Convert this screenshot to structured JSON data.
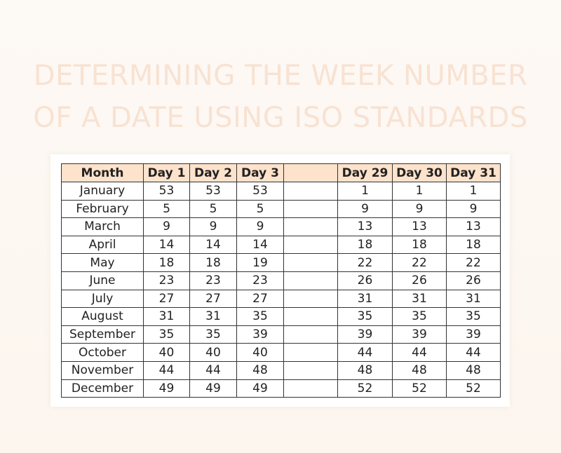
{
  "title_lines": [
    "DETERMINING THE WEEK NUMBER",
    "OF A DATE USING ISO STANDARDS"
  ],
  "table": {
    "header": [
      "Month",
      "Day 1",
      "Day 2",
      "Day 3",
      "Day 29",
      "Day 30",
      "Day 31"
    ],
    "rows": [
      [
        "January",
        53,
        53,
        53,
        1,
        1,
        1
      ],
      [
        "February",
        5,
        5,
        5,
        9,
        9,
        9
      ],
      [
        "March",
        9,
        9,
        9,
        13,
        13,
        13
      ],
      [
        "April",
        14,
        14,
        14,
        18,
        18,
        18
      ],
      [
        "May",
        18,
        18,
        19,
        22,
        22,
        22
      ],
      [
        "June",
        23,
        23,
        23,
        26,
        26,
        26
      ],
      [
        "July",
        27,
        27,
        27,
        31,
        31,
        31
      ],
      [
        "August",
        31,
        31,
        35,
        35,
        35,
        35
      ],
      [
        "September",
        35,
        35,
        39,
        39,
        39,
        39
      ],
      [
        "October",
        40,
        40,
        40,
        44,
        44,
        44
      ],
      [
        "November",
        44,
        44,
        48,
        48,
        48,
        48
      ],
      [
        "December",
        49,
        49,
        49,
        52,
        52,
        52
      ]
    ]
  }
}
